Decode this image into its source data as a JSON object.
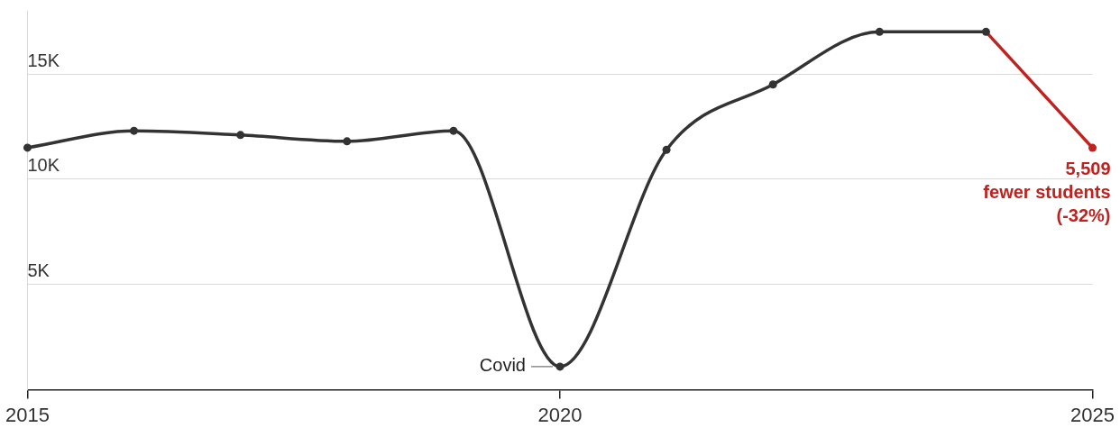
{
  "chart_data": {
    "type": "line",
    "series": [
      {
        "color": "#333333",
        "x": [
          2015,
          2016,
          2017,
          2018,
          2019,
          2020,
          2021,
          2022,
          2023,
          2024
        ],
        "values": [
          11500,
          12300,
          12100,
          11800,
          12300,
          1100,
          11400,
          14500,
          17000,
          17000
        ]
      },
      {
        "color": "#c0231f",
        "x": [
          2024,
          2025
        ],
        "values": [
          17000,
          11490
        ]
      }
    ],
    "xlim": [
      2015,
      2025
    ],
    "xticks": [
      2015,
      2020,
      2025
    ],
    "ylim": [
      0,
      18000
    ],
    "yticks": [
      {
        "value": 5000,
        "label": "5K"
      },
      {
        "value": 10000,
        "label": "10K"
      },
      {
        "value": 15000,
        "label": "15K"
      }
    ],
    "grid": "y",
    "marker": "circle",
    "line_style": "solid",
    "legend": false,
    "annotations": [
      {
        "text": "Covid",
        "x": 2020,
        "y": 1100
      },
      {
        "text": "5,509\nfewer students\n(-32%)",
        "x": 2025,
        "y": 11490
      }
    ]
  }
}
